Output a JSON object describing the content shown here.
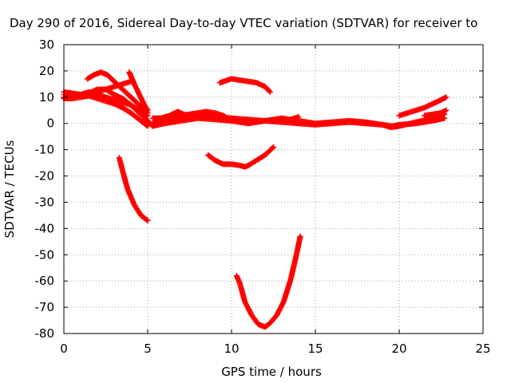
{
  "chart_data": {
    "type": "scatter",
    "title": "Day 290 of 2016, Sidereal Day-to-day VTEC variation (SDTVAR) for receiver to",
    "xlabel": "GPS time / hours",
    "ylabel": "SDTVAR / TECUs",
    "xlim": [
      0,
      25
    ],
    "ylim": [
      -80,
      30
    ],
    "xticks": [
      "0",
      "5",
      "10",
      "15",
      "20",
      "25"
    ],
    "yticks": [
      "30",
      "20",
      "10",
      "0",
      "-10",
      "-20",
      "-30",
      "-40",
      "-50",
      "-60",
      "-70",
      "-80"
    ],
    "grid": true,
    "marker": "plus",
    "series": [
      {
        "values": [
          [
            0,
            11
          ],
          [
            0.5,
            11
          ],
          [
            1,
            10.5
          ],
          [
            1.5,
            11
          ],
          [
            2,
            12
          ],
          [
            2.5,
            13
          ],
          [
            3,
            14
          ],
          [
            3.5,
            15
          ],
          [
            4,
            16
          ]
        ]
      },
      {
        "values": [
          [
            1.4,
            17
          ],
          [
            1.8,
            18.5
          ],
          [
            2.2,
            19.5
          ],
          [
            2.6,
            18.5
          ],
          [
            3,
            16
          ],
          [
            3.5,
            13
          ],
          [
            4,
            10
          ],
          [
            4.5,
            7
          ],
          [
            5,
            4
          ]
        ]
      },
      {
        "values": [
          [
            0,
            10
          ],
          [
            0.5,
            10
          ],
          [
            1,
            11
          ],
          [
            1.5,
            12
          ],
          [
            2,
            11
          ],
          [
            2.5,
            10
          ],
          [
            3,
            9
          ],
          [
            3.5,
            8
          ],
          [
            4,
            7
          ],
          [
            4.5,
            5
          ],
          [
            5,
            3
          ]
        ]
      },
      {
        "values": [
          [
            0,
            12
          ],
          [
            0.5,
            11.5
          ],
          [
            1,
            11
          ],
          [
            1.5,
            11.5
          ],
          [
            2,
            13
          ],
          [
            2.5,
            13
          ],
          [
            3,
            11
          ],
          [
            3.5,
            9.5
          ],
          [
            4,
            7
          ],
          [
            4.5,
            4
          ],
          [
            5,
            1
          ],
          [
            5.3,
            -1
          ]
        ]
      },
      {
        "values": [
          [
            0,
            9.5
          ],
          [
            0.5,
            9.5
          ],
          [
            1,
            10
          ],
          [
            1.5,
            10.5
          ],
          [
            2,
            9.5
          ],
          [
            2.5,
            8.5
          ],
          [
            3,
            7.5
          ],
          [
            3.5,
            6
          ],
          [
            4,
            4
          ],
          [
            4.5,
            1.5
          ],
          [
            5,
            -1
          ]
        ]
      },
      {
        "values": [
          [
            3.9,
            19.5
          ],
          [
            4.2,
            15
          ],
          [
            4.5,
            11
          ],
          [
            4.8,
            7
          ],
          [
            5,
            5
          ]
        ]
      },
      {
        "values": [
          [
            5.3,
            2
          ],
          [
            5.8,
            2
          ],
          [
            6.3,
            3
          ],
          [
            6.8,
            4.5
          ],
          [
            7.3,
            3
          ]
        ]
      },
      {
        "values": [
          [
            5.3,
            0
          ],
          [
            6,
            1
          ],
          [
            7,
            2
          ],
          [
            8,
            3
          ],
          [
            9,
            2.5
          ],
          [
            10,
            2
          ],
          [
            11,
            1.5
          ],
          [
            12,
            1
          ],
          [
            13,
            0.5
          ],
          [
            14,
            0
          ],
          [
            15,
            -0.5
          ],
          [
            16,
            0
          ],
          [
            17,
            0.5
          ],
          [
            18,
            0
          ],
          [
            19,
            -0.5
          ],
          [
            19.6,
            -1
          ],
          [
            20,
            -0.5
          ],
          [
            21,
            0
          ],
          [
            22,
            1
          ],
          [
            22.7,
            2
          ]
        ]
      },
      {
        "values": [
          [
            5.3,
            -1
          ],
          [
            6,
            0
          ],
          [
            7,
            1
          ],
          [
            8,
            2
          ],
          [
            9,
            1.5
          ],
          [
            10,
            1
          ],
          [
            11,
            0.5
          ],
          [
            12,
            1
          ],
          [
            13,
            1.5
          ],
          [
            14,
            1
          ],
          [
            15,
            0
          ],
          [
            16,
            0.5
          ],
          [
            17,
            1
          ],
          [
            18,
            0.5
          ],
          [
            19,
            -0.5
          ],
          [
            19.5,
            -1.5
          ],
          [
            20,
            -1
          ],
          [
            21,
            0.5
          ],
          [
            22,
            2
          ],
          [
            22.7,
            3.5
          ]
        ]
      },
      {
        "values": [
          [
            6,
            2
          ],
          [
            7,
            3
          ],
          [
            8,
            4
          ],
          [
            8.5,
            4.5
          ],
          [
            9,
            4
          ],
          [
            9.5,
            3
          ],
          [
            10,
            1
          ],
          [
            11,
            0
          ],
          [
            12,
            1
          ],
          [
            13,
            2
          ],
          [
            13.5,
            1.5
          ],
          [
            14,
            2.5
          ]
        ]
      },
      {
        "values": [
          [
            7,
            3
          ],
          [
            8,
            3
          ],
          [
            8.5,
            3.5
          ],
          [
            9,
            3
          ],
          [
            9.5,
            2
          ]
        ]
      },
      {
        "values": [
          [
            9.3,
            15.5
          ],
          [
            10,
            17
          ],
          [
            10.5,
            16.5
          ],
          [
            11,
            16
          ],
          [
            11.5,
            15.5
          ],
          [
            12,
            14
          ],
          [
            12.3,
            12
          ]
        ]
      },
      {
        "values": [
          [
            8.6,
            -12
          ],
          [
            9,
            -14
          ],
          [
            9.5,
            -15.5
          ],
          [
            10,
            -15.5
          ],
          [
            10.5,
            -16
          ],
          [
            10.8,
            -16.5
          ],
          [
            11,
            -16
          ],
          [
            11.5,
            -14
          ],
          [
            12,
            -12
          ],
          [
            12.5,
            -9
          ]
        ]
      },
      {
        "values": [
          [
            3.3,
            -13
          ],
          [
            3.5,
            -18
          ],
          [
            3.8,
            -25
          ],
          [
            4.2,
            -31
          ],
          [
            4.6,
            -35
          ],
          [
            5,
            -37
          ]
        ]
      },
      {
        "values": [
          [
            10.3,
            -58
          ],
          [
            10.5,
            -61
          ],
          [
            10.8,
            -68
          ],
          [
            11.2,
            -73
          ],
          [
            11.6,
            -76.5
          ],
          [
            12,
            -77.5
          ],
          [
            12.3,
            -76
          ],
          [
            12.7,
            -73
          ],
          [
            13.1,
            -68
          ],
          [
            13.5,
            -60
          ],
          [
            13.8,
            -52
          ],
          [
            14.1,
            -43
          ]
        ]
      },
      {
        "values": [
          [
            20,
            3
          ],
          [
            20.5,
            4
          ],
          [
            21,
            5
          ],
          [
            21.5,
            6
          ],
          [
            22,
            7.5
          ],
          [
            22.5,
            9
          ],
          [
            22.8,
            10
          ]
        ]
      },
      {
        "values": [
          [
            21.5,
            3
          ],
          [
            22,
            3.5
          ],
          [
            22.5,
            4
          ],
          [
            22.8,
            5
          ]
        ]
      }
    ]
  },
  "colors": {
    "series": "#ff0000",
    "grid": "#a0a0a0",
    "axis": "#000000"
  }
}
